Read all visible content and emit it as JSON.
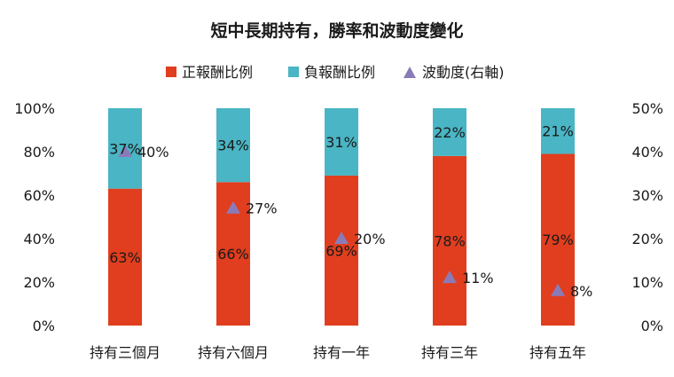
{
  "chart_data": {
    "type": "bar",
    "title": "短中長期持有，勝率和波動度變化",
    "categories": [
      "持有三個月",
      "持有六個月",
      "持有一年",
      "持有三年",
      "持有五年"
    ],
    "series": [
      {
        "name": "正報酬比例",
        "kind": "bar",
        "axis": "left",
        "values": [
          63,
          66,
          69,
          78,
          79
        ],
        "labels": [
          "63%",
          "66%",
          "69%",
          "78%",
          "79%"
        ],
        "color": "#e03e1e"
      },
      {
        "name": "負報酬比例",
        "kind": "bar",
        "axis": "left",
        "values": [
          37,
          34,
          31,
          22,
          21
        ],
        "labels": [
          "37%",
          "34%",
          "31%",
          "22%",
          "21%"
        ],
        "color": "#4ab5c4"
      },
      {
        "name": "波動度(右軸)",
        "kind": "marker",
        "axis": "right",
        "values": [
          40,
          27,
          20,
          11,
          8
        ],
        "labels": [
          "40%",
          "27%",
          "20%",
          "11%",
          "8%"
        ],
        "color": "#8a7bb8"
      }
    ],
    "stacked": true,
    "y_left": {
      "range": [
        0,
        100
      ],
      "ticks": [
        "0%",
        "20%",
        "40%",
        "60%",
        "80%",
        "100%"
      ]
    },
    "y_right": {
      "range": [
        0,
        50
      ],
      "ticks": [
        "0%",
        "10%",
        "20%",
        "30%",
        "40%",
        "50%"
      ]
    },
    "legend_position": "top",
    "grid": false
  }
}
